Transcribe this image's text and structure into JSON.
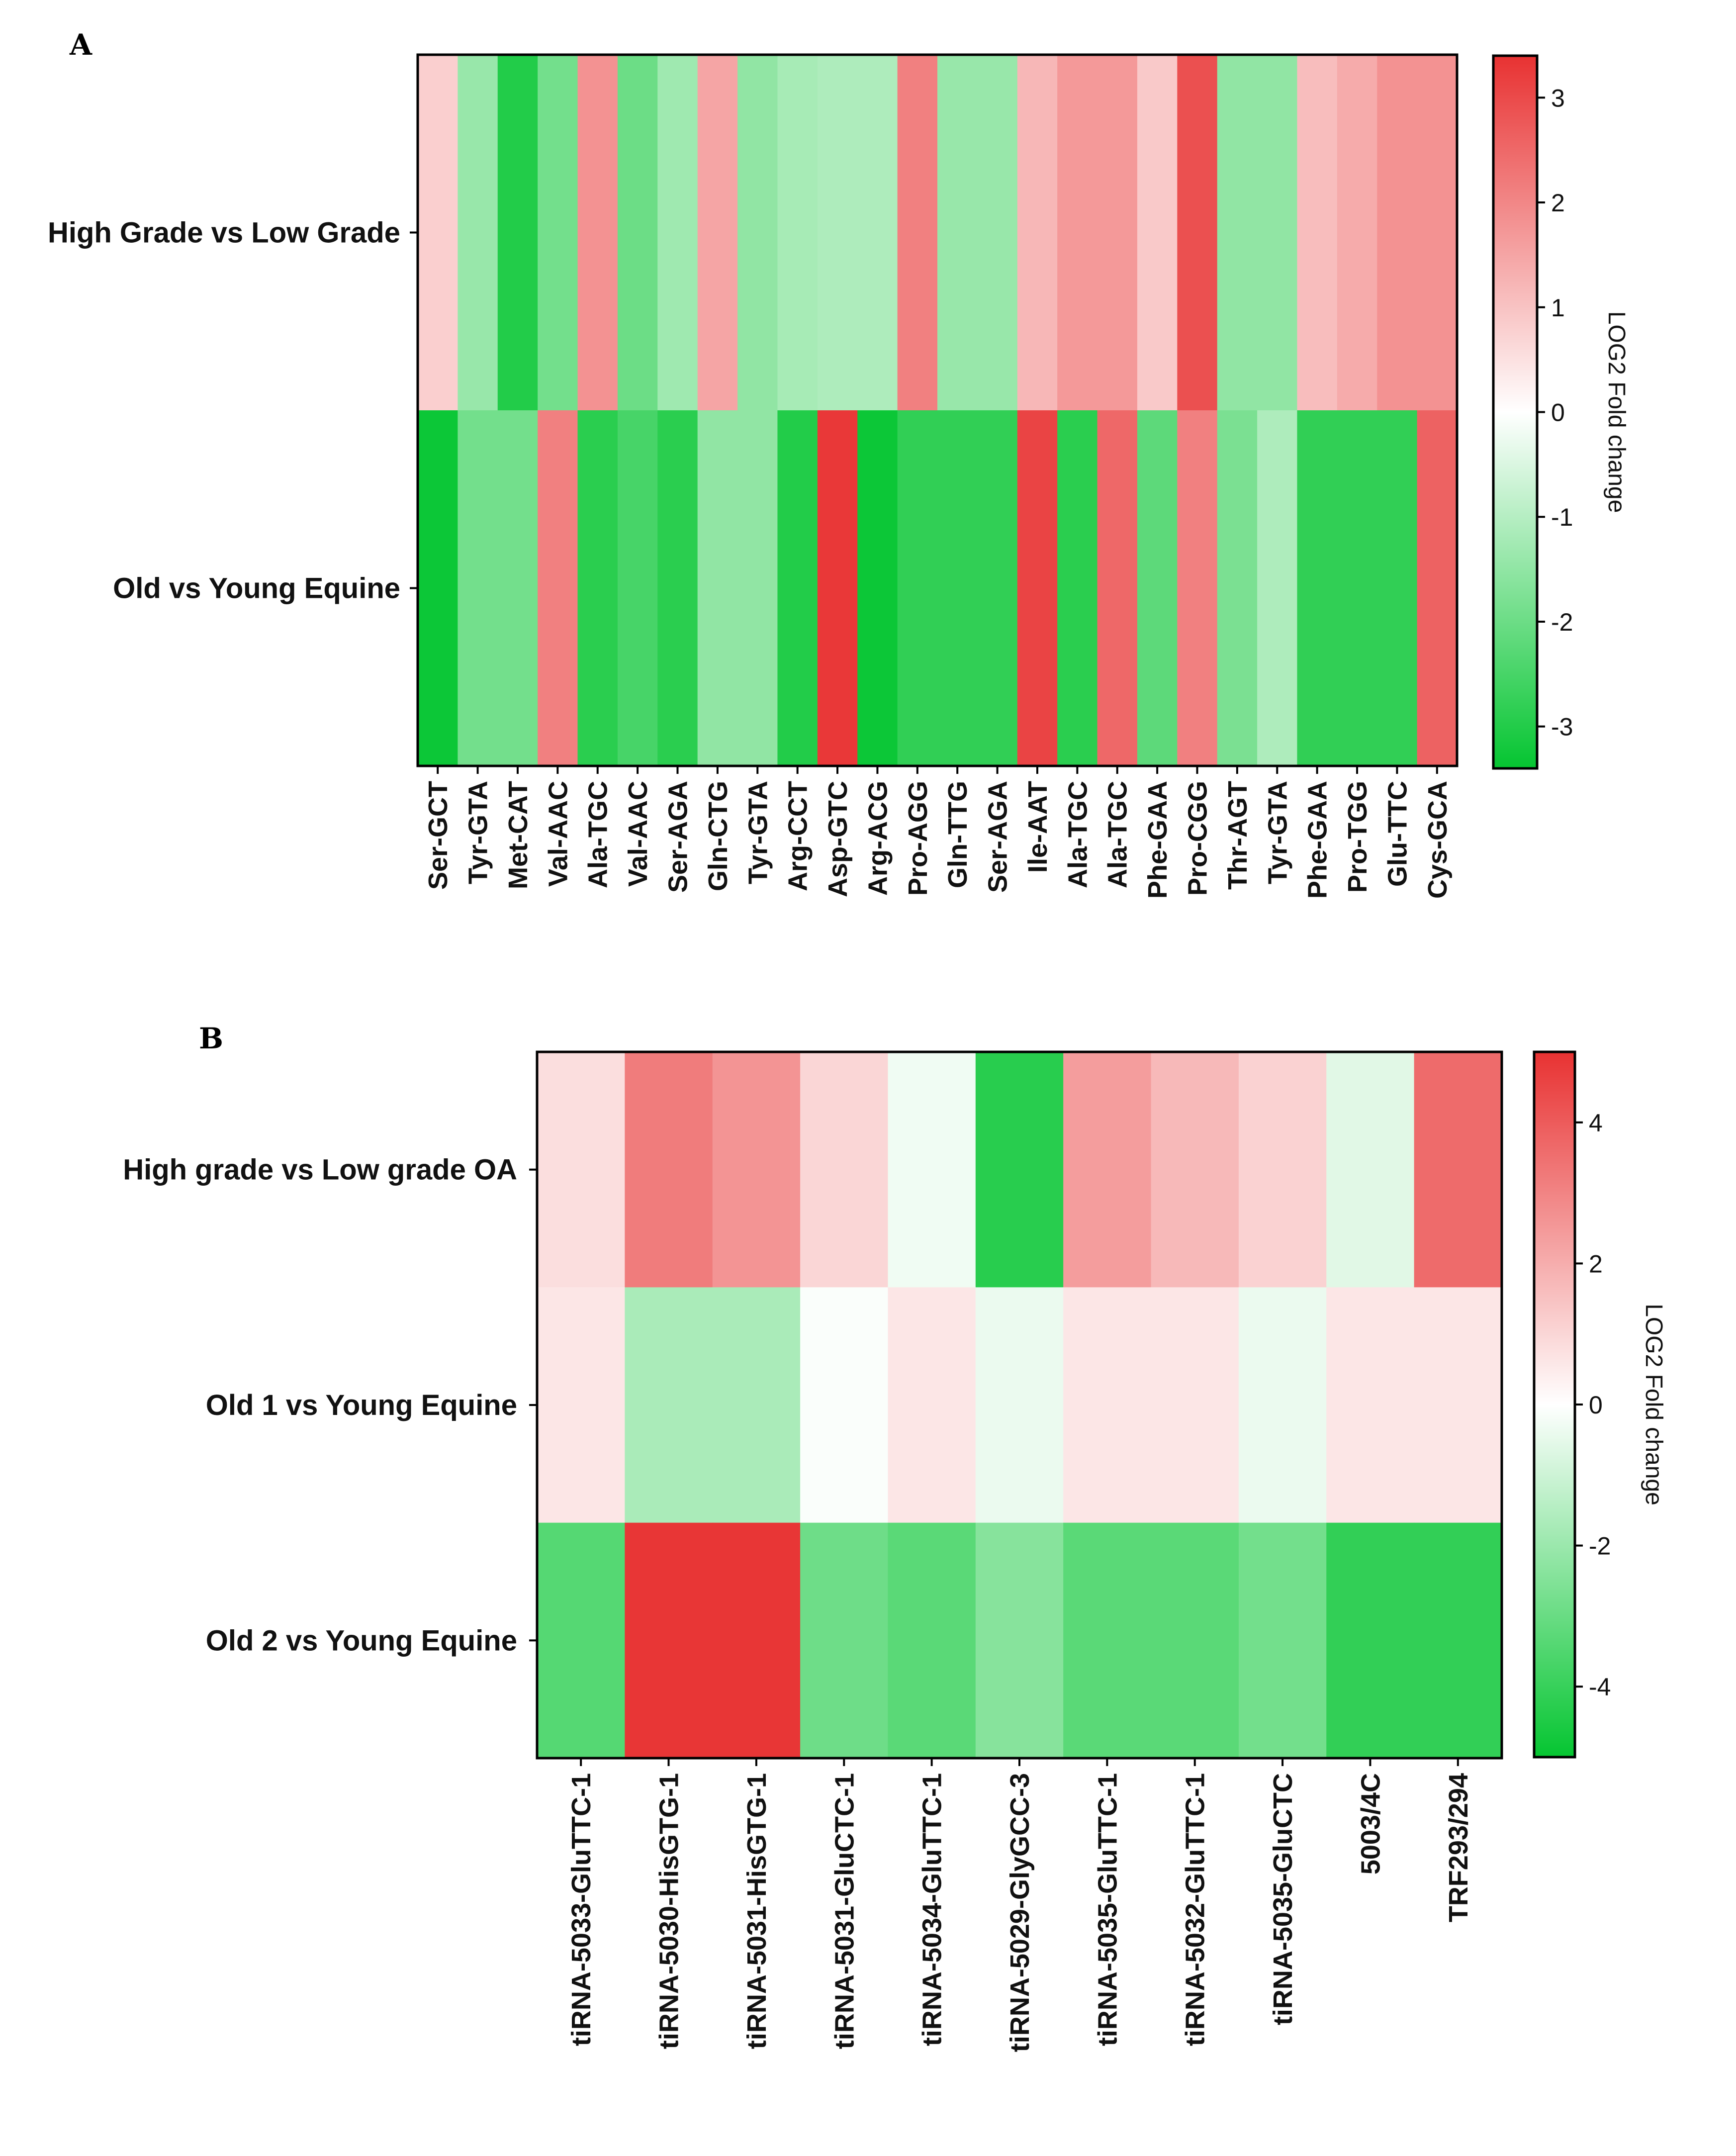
{
  "chart_data": [
    {
      "type": "heatmap",
      "panel": "A",
      "rows": [
        "High Grade vs Low Grade",
        "Old vs Young Equine"
      ],
      "columns": [
        "Ser-GCT",
        "Tyr-GTA",
        "Met-CAT",
        "Val-AAC",
        "Ala-TGC",
        "Val-AAC",
        "Ser-AGA",
        "Gln-CTG",
        "Tyr-GTA",
        "Arg-CCT",
        "Asp-GTC",
        "Arg-ACG",
        "Pro-AGG",
        "Gln-TTG",
        "Ser-AGA",
        "Ile-AAT",
        "Ala-TGC",
        "Ala-TGC",
        "Phe-GAA",
        "Pro-CGG",
        "Thr-AGT",
        "Tyr-GTA",
        "Phe-GAA",
        "Pro-TGG",
        "Glu-TTC",
        "Cys-GCA"
      ],
      "values": [
        [
          0.8,
          -1.4,
          -3.0,
          -1.9,
          1.8,
          -2.0,
          -1.3,
          1.5,
          -1.5,
          -1.2,
          -1.1,
          -1.1,
          2.1,
          -1.4,
          -1.4,
          1.2,
          1.7,
          1.7,
          0.9,
          2.9,
          -1.5,
          -1.5,
          1.1,
          1.4,
          1.8,
          1.8
        ],
        [
          -3.3,
          -1.9,
          -1.9,
          2.1,
          -2.9,
          -2.5,
          -2.9,
          -1.5,
          -1.5,
          -3.0,
          3.3,
          -3.3,
          -2.8,
          -2.8,
          -2.8,
          3.1,
          -2.9,
          2.5,
          -2.2,
          2.1,
          -1.8,
          -1.1,
          -2.8,
          -2.8,
          -2.8,
          2.6
        ]
      ],
      "colorbar": {
        "title": "LOG2 Fold change",
        "min": -3.4,
        "max": 3.4,
        "ticks": [
          3,
          2,
          1,
          0,
          -1,
          -2,
          -3
        ]
      }
    },
    {
      "type": "heatmap",
      "panel": "B",
      "rows": [
        "High grade vs Low grade OA",
        "Old 1 vs Young Equine",
        "Old 2 vs Young Equine"
      ],
      "columns": [
        "tiRNA-5033-GluTTC-1",
        "tiRNA-5030-HisGTG-1",
        "tiRNA-5031-HisGTG-1",
        "tiRNA-5031-GluCTC-1",
        "tiRNA-5034-GluTTC-1",
        "tiRNA-5029-GlyGCC-3",
        "tiRNA-5035-GluTTC-1",
        "tiRNA-5032-GluTTC-1",
        "tiRNA-5035-GluCTC",
        "5003/4C",
        "TRF293/294"
      ],
      "values": [
        [
          0.8,
          3.2,
          2.6,
          1.0,
          -0.3,
          -4.3,
          2.4,
          1.7,
          1.1,
          -0.6,
          3.6
        ],
        [
          0.6,
          -1.7,
          -1.7,
          -0.1,
          0.6,
          -0.4,
          0.6,
          0.6,
          -0.4,
          0.6,
          0.6
        ],
        [
          -3.4,
          4.9,
          4.9,
          -2.9,
          -3.3,
          -2.4,
          -3.3,
          -3.3,
          -2.8,
          -4.1,
          -4.1
        ]
      ],
      "colorbar": {
        "title": "LOG2 Fold change",
        "min": -5,
        "max": 5,
        "ticks": [
          4,
          2,
          0,
          -2,
          -4
        ]
      }
    }
  ],
  "colors": {
    "high": "#e83232",
    "mid": "#ffffff",
    "low": "#05c531",
    "frame": "#000000"
  }
}
